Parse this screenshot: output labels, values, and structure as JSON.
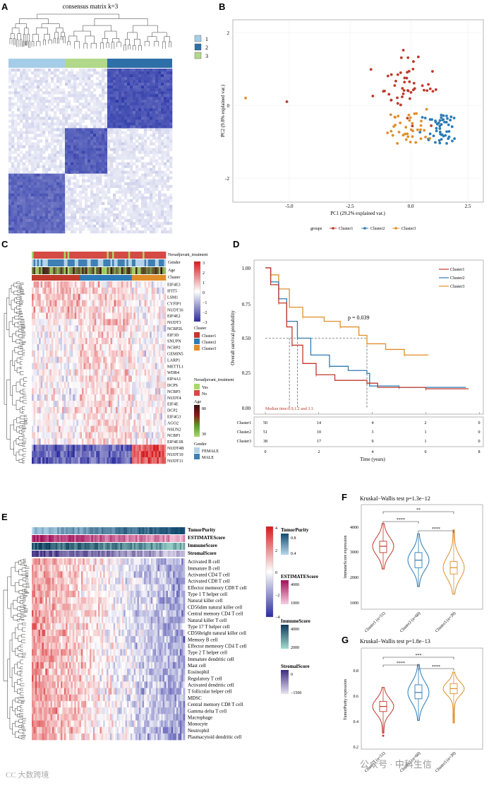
{
  "colors": {
    "cluster1": "#c0392b",
    "cluster2": "#2c7bb6",
    "cluster3": "#e08e2b",
    "consensus1": "#a6cde8",
    "consensus2": "#2e6fa7",
    "consensus3": "#b2d88a",
    "heat_high": "#d7191c",
    "heat_mid": "#ffffff",
    "heat_low": "#2b2b9e",
    "neoadj": "#d44a44",
    "gender": "#3f7fb3",
    "age_high": "#3a1010",
    "age_low": "#a7d96a"
  },
  "panelA": {
    "label": "A",
    "title": "consensus matrix k=3",
    "legend": [
      "1",
      "2",
      "3"
    ]
  },
  "panelB": {
    "label": "B",
    "xlabel": "PC1 (29.2% explained var.)",
    "ylabel": "PC2 (9.8% explained var.)",
    "xticks": [
      "-5.0",
      "-2.5",
      "0.0",
      "2.5"
    ],
    "yticks": [
      "2",
      "0",
      "-2"
    ],
    "legend_title": "groups",
    "legend_items": [
      "Cluster1",
      "Cluster2",
      "Cluster3"
    ]
  },
  "panelC": {
    "label": "C",
    "annotations": [
      "Neoadjuvant_treatment",
      "Gender",
      "Age",
      "Cluster"
    ],
    "genes": [
      "EIF4E3",
      "IFIT5",
      "LSM1",
      "CYFIP1",
      "NUDT16",
      "EIF4E2",
      "NUDT3",
      "NCBP2L",
      "EIF3D",
      "SNUPN",
      "NCBP2",
      "GEMIN5",
      "LARP1",
      "METTL1",
      "WDR4",
      "EIF4A1",
      "DCPS",
      "NCBP3",
      "NUDT4",
      "EIF4E",
      "DCP2",
      "EIF4G3",
      "AGO2",
      "NSUN2",
      "NCBP1",
      "EIF4E1B",
      "NUDT4B",
      "NUDT10",
      "NUDT11"
    ],
    "scale_ticks": [
      "3",
      "2",
      "1",
      "0",
      "−1",
      "−2",
      "−3"
    ],
    "cluster_legend_title": "Cluster",
    "cluster_legend": [
      "Cluster1",
      "Cluster2",
      "Cluster3"
    ],
    "neoadj_title": "Neoadjuvant_treatment",
    "neoadj_legend": [
      "Yes",
      "No"
    ],
    "age_title": "Age",
    "age_ticks": [
      "80",
      "30"
    ],
    "gender_title": "Gender",
    "gender_legend": [
      "FEMALE",
      "MALE"
    ]
  },
  "panelD": {
    "label": "D",
    "ylabel": "Overall survival probability",
    "yticks": [
      "1.00",
      "0.75",
      "0.50",
      "0.25",
      "0.00"
    ],
    "pvalue": "p = 0.039",
    "median_text": "Median time:0.9,1.2 and 3.3",
    "legend": [
      "Cluster1",
      "Cluster2",
      "Cluster3"
    ],
    "risk_rows": [
      {
        "name": "Cluster1",
        "values": [
          "50",
          "14",
          "4",
          "2",
          "0"
        ]
      },
      {
        "name": "Cluster2",
        "values": [
          "51",
          "10",
          "3",
          "1",
          "0"
        ]
      },
      {
        "name": "Cluster3",
        "values": [
          "38",
          "17",
          "9",
          "1",
          "0"
        ]
      }
    ],
    "xticks": [
      "0",
      "2",
      "4",
      "6",
      "8"
    ],
    "xlabel": "Time (years)"
  },
  "panelE": {
    "label": "E",
    "annotations": [
      "TumorPurity",
      "ESTIMATEScore",
      "ImmuneScore",
      "StromalScore"
    ],
    "cells": [
      "Activated B cell",
      "Immature  B cell",
      "Activated CD4 T cell",
      "Activated CD8 T cell",
      "Effector memeory CD8 T cell",
      "Type 1 T helper cell",
      "Natural killer cell",
      "CD56dim natural killer cell",
      "Central memory CD4 T cell",
      "Natural killer T cell",
      "Type 17 T helper cell",
      "CD56bright natural killer cell",
      "Memory B cell",
      "Effector memeory CD4 T cell",
      "Type 2 T helper cell",
      "Immature dendritic cell",
      "Mast cell",
      "Eosinophil",
      "Regulatory T cell",
      "Activated dendritic cell",
      "T follicular helper cell",
      "MDSC",
      "Central memory CD8 T cell",
      "Gamma delta T cell",
      "Macrophage",
      "Monocyte",
      "Neutrophil",
      "Plasmacytoid dendritic cell"
    ],
    "scale_ticks": [
      "4",
      "2",
      "0",
      "−2",
      "−4"
    ],
    "tp_title": "TumorPurity",
    "tp_ticks": [
      "0.8",
      "0.4"
    ],
    "est_title": "ESTIMATEScore",
    "est_ticks": [
      "4000",
      "1000"
    ],
    "imm_title": "ImmuneScore",
    "imm_ticks": [
      "4000",
      "2000"
    ],
    "str_title": "StromalScore",
    "str_ticks": [
      "0",
      "−1500"
    ]
  },
  "panelF": {
    "label": "F",
    "title": "Kruskal−Wallis test p=1.3e−12",
    "ylabel": "ImmuneScore expression",
    "yticks": [
      "4000",
      "3000",
      "2000",
      "1000"
    ],
    "xticks": [
      "Cluster1 (n=51)",
      "Cluster2 (n=60)",
      "Cluster3 (n=39)"
    ],
    "sig": [
      "****",
      "****",
      "**"
    ]
  },
  "panelG": {
    "label": "G",
    "title": "Kruskal−Wallis test p=1.8e−13",
    "ylabel": "TumorPurity expression",
    "yticks": [
      "0.8",
      "0.6",
      "0.4",
      "0.2"
    ],
    "xticks": [
      "Cluster1 (n=51)",
      "Cluster2 (n=60)",
      "Cluster3 (n=39)"
    ],
    "sig": [
      "****",
      "****",
      "***"
    ]
  },
  "watermark_left": "CC 大数跨境",
  "watermark_right": "公众号 · 中科生信"
}
